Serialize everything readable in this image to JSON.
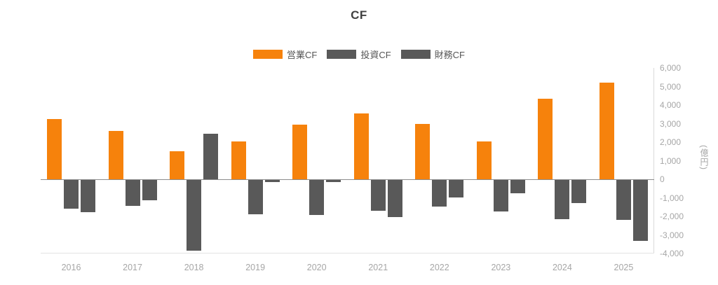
{
  "title": "CF",
  "unit_label": "(億円)",
  "legend": [
    {
      "id": "operating-cf",
      "label": "営業CF",
      "color": "#f6820c"
    },
    {
      "id": "investing-cf",
      "label": "投資CF",
      "color": "#595959"
    },
    {
      "id": "financing-cf",
      "label": "財務CF",
      "color": "#595959"
    }
  ],
  "colors": {
    "operating": "#f6820c",
    "investing": "#595959",
    "financing": "#595959",
    "title_text": "#404040",
    "axis_label_text": "#a6a6a6",
    "zero_line": "#8c8c8c"
  },
  "chart_data": {
    "type": "bar",
    "title": "CF",
    "categories": [
      "2016",
      "2017",
      "2018",
      "2019",
      "2020",
      "2021",
      "2022",
      "2023",
      "2024",
      "2025"
    ],
    "series": [
      {
        "id": "operating-cf",
        "name": "営業CF",
        "color": "#f6820c",
        "values": [
          3250,
          2600,
          1500,
          2050,
          2950,
          3550,
          3000,
          2050,
          4350,
          5200
        ]
      },
      {
        "id": "investing-cf",
        "name": "投資CF",
        "color": "#595959",
        "values": [
          -1550,
          -1400,
          -3800,
          -1850,
          -1900,
          -1650,
          -1450,
          -1700,
          -2100,
          -2150
        ]
      },
      {
        "id": "financing-cf",
        "name": "財務CF",
        "color": "#595959",
        "values": [
          -1750,
          -1100,
          2450,
          -100,
          -100,
          -2000,
          -950,
          -700,
          -1250,
          -3300
        ]
      }
    ],
    "xlabel": "",
    "ylabel": "(億円)",
    "ylim": [
      -4000,
      6000
    ],
    "ytick_interval": 1000,
    "ytick_labels": [
      "6,000",
      "5,000",
      "4,000",
      "3,000",
      "2,000",
      "1,000",
      "0",
      "-1,000",
      "-2,000",
      "-3,000",
      "-4,000"
    ],
    "legend_position": "top",
    "grid": false
  }
}
